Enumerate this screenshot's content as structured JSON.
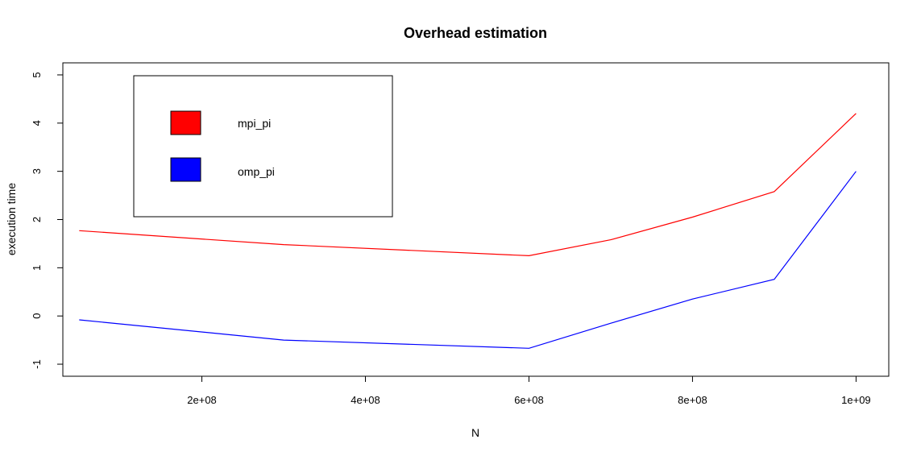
{
  "chart_data": {
    "type": "line",
    "title": "Overhead estimation",
    "xlabel": "N",
    "ylabel": "execution time",
    "xlim": [
      30000000,
      1040000000
    ],
    "ylim": [
      -1.25,
      5.25
    ],
    "x_ticks": [
      200000000,
      400000000,
      600000000,
      800000000,
      1000000000
    ],
    "x_tick_labels": [
      "2e+08",
      "4e+08",
      "6e+08",
      "8e+08",
      "1e+09"
    ],
    "y_ticks": [
      -1,
      0,
      1,
      2,
      3,
      4,
      5
    ],
    "y_tick_labels": [
      "-1",
      "0",
      "1",
      "2",
      "3",
      "4",
      "5"
    ],
    "grid": false,
    "legend_position": "top-left",
    "series": [
      {
        "name": "mpi_pi",
        "color": "#ff0000",
        "x": [
          50000000,
          300000000,
          600000000,
          700000000,
          800000000,
          900000000,
          1000000000
        ],
        "values": [
          1.77,
          1.48,
          1.25,
          1.58,
          2.05,
          2.58,
          4.2
        ]
      },
      {
        "name": "omp_pi",
        "color": "#0000ff",
        "x": [
          50000000,
          300000000,
          600000000,
          700000000,
          800000000,
          900000000,
          1000000000
        ],
        "values": [
          -0.08,
          -0.5,
          -0.67,
          -0.15,
          0.35,
          0.76,
          3.0
        ]
      }
    ]
  }
}
